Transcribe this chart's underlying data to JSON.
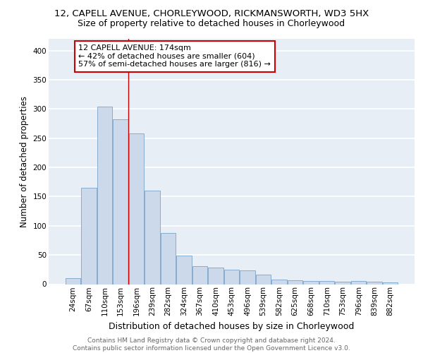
{
  "title1": "12, CAPELL AVENUE, CHORLEYWOOD, RICKMANSWORTH, WD3 5HX",
  "title2": "Size of property relative to detached houses in Chorleywood",
  "xlabel": "Distribution of detached houses by size in Chorleywood",
  "ylabel": "Number of detached properties",
  "categories": [
    "24sqm",
    "67sqm",
    "110sqm",
    "153sqm",
    "196sqm",
    "239sqm",
    "282sqm",
    "324sqm",
    "367sqm",
    "410sqm",
    "453sqm",
    "496sqm",
    "539sqm",
    "582sqm",
    "625sqm",
    "668sqm",
    "710sqm",
    "753sqm",
    "796sqm",
    "839sqm",
    "882sqm"
  ],
  "values": [
    10,
    165,
    304,
    282,
    258,
    160,
    88,
    49,
    31,
    29,
    25,
    23,
    16,
    8,
    7,
    5,
    5,
    4,
    5,
    4,
    3
  ],
  "bar_color": "#ccd9ea",
  "bar_edge_color": "#7aa3c8",
  "property_line_x": 3.5,
  "annotation_line1": "12 CAPELL AVENUE: 174sqm",
  "annotation_line2": "← 42% of detached houses are smaller (604)",
  "annotation_line3": "57% of semi-detached houses are larger (816) →",
  "annotation_box_color": "white",
  "annotation_box_edge_color": "#cc0000",
  "vline_color": "#cc0000",
  "ylim": [
    0,
    420
  ],
  "yticks": [
    0,
    50,
    100,
    150,
    200,
    250,
    300,
    350,
    400
  ],
  "footer1": "Contains HM Land Registry data © Crown copyright and database right 2024.",
  "footer2": "Contains public sector information licensed under the Open Government Licence v3.0.",
  "bg_color": "#e8eef5",
  "grid_color": "white",
  "title1_fontsize": 9.5,
  "title2_fontsize": 9,
  "tick_fontsize": 7.5,
  "ylabel_fontsize": 8.5,
  "xlabel_fontsize": 9,
  "footer_fontsize": 6.5,
  "ann_fontsize": 8
}
